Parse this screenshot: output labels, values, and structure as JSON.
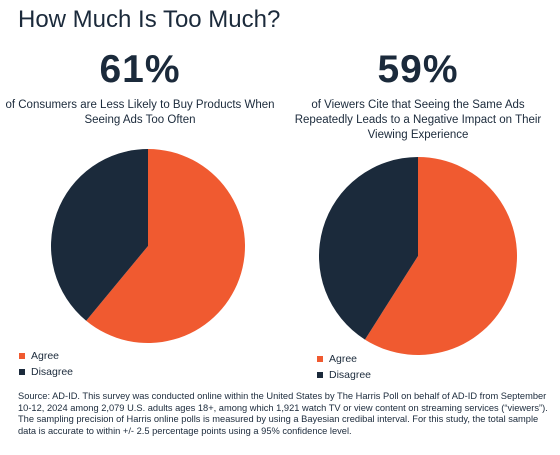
{
  "title": "How Much Is Too Much?",
  "colors": {
    "agree": "#f05a30",
    "disagree": "#1b2a3b",
    "text": "#1b2a3b"
  },
  "chart_data": [
    {
      "type": "pie",
      "headline": "61%",
      "caption": "of Consumers are Less Likely to Buy Products When Seeing Ads Too Often",
      "categories": [
        "Agree",
        "Disagree"
      ],
      "values": [
        61,
        39
      ],
      "colors": [
        "#f05a30",
        "#1b2a3b"
      ],
      "legend": [
        "Agree",
        "Disagree"
      ],
      "legend_position": "bottom-left"
    },
    {
      "type": "pie",
      "headline": "59%",
      "caption": "of Viewers Cite that Seeing the Same Ads Repeatedly Leads to a Negative Impact on Their Viewing Experience",
      "categories": [
        "Agree",
        "Disagree"
      ],
      "values": [
        59,
        41
      ],
      "colors": [
        "#f05a30",
        "#1b2a3b"
      ],
      "legend": [
        "Agree",
        "Disagree"
      ],
      "legend_position": "bottom-left"
    }
  ],
  "source": "Source: AD-ID.  This survey was conducted online within the United States by The Harris Poll on behalf of AD-ID from September 10-12, 2024 among 2,079 U.S. adults ages 18+, among which 1,921 watch TV or view content on streaming services (“viewers”). The sampling precision of Harris online polls is measured by using a Bayesian credibal interval. For this study, the total sample data is accurate to within +/- 2.5 percentage points using a 95% confidence level."
}
